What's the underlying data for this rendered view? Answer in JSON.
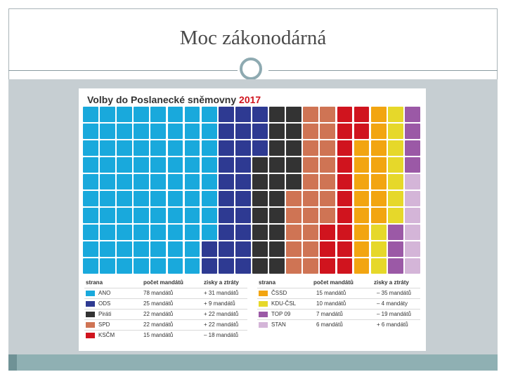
{
  "slide": {
    "title": "Moc zákonodárná"
  },
  "infographic": {
    "title": "Volby do Poslanecké sněmovny",
    "year": "2017"
  },
  "chart_data": {
    "type": "waffle",
    "cells_per_column": 10,
    "total": 200,
    "series": [
      {
        "name": "ANO",
        "value": 78,
        "color": "#19a9dc"
      },
      {
        "name": "ODS",
        "value": 25,
        "color": "#2e3a92"
      },
      {
        "name": "Piráti",
        "value": 22,
        "color": "#333333"
      },
      {
        "name": "SPD",
        "value": 22,
        "color": "#cf7454"
      },
      {
        "name": "KSČM",
        "value": 15,
        "color": "#d0141e"
      },
      {
        "name": "ČSSD",
        "value": 15,
        "color": "#f2a511"
      },
      {
        "name": "KDU-ČSL",
        "value": 10,
        "color": "#e6d82a"
      },
      {
        "name": "TOP 09",
        "value": 7,
        "color": "#9b59a6"
      },
      {
        "name": "STAN",
        "value": 6,
        "color": "#d4b5d8"
      }
    ]
  },
  "legend": {
    "headers": {
      "party": "strana",
      "seats": "počet mandátů",
      "change": "zisky a ztráty"
    },
    "rows": [
      {
        "party": "ANO",
        "seats": "78 mandátů",
        "change": "+ 31 mandátů",
        "color": "#19a9dc"
      },
      {
        "party": "ODS",
        "seats": "25 mandátů",
        "change": "+ 9 mandátů",
        "color": "#2e3a92"
      },
      {
        "party": "Piráti",
        "seats": "22 mandátů",
        "change": "+ 22 mandátů",
        "color": "#333333"
      },
      {
        "party": "SPD",
        "seats": "22 mandátů",
        "change": "+ 22 mandátů",
        "color": "#cf7454"
      },
      {
        "party": "KSČM",
        "seats": "15 mandátů",
        "change": "– 18 mandátů",
        "color": "#d0141e"
      },
      {
        "party": "ČSSD",
        "seats": "15 mandátů",
        "change": "– 35 mandátů",
        "color": "#f2a511"
      },
      {
        "party": "KDU-ČSL",
        "seats": "10 mandátů",
        "change": "– 4 mandáty",
        "color": "#e6d82a"
      },
      {
        "party": "TOP 09",
        "seats": "7 mandátů",
        "change": "– 19 mandátů",
        "color": "#9b59a6"
      },
      {
        "party": "STAN",
        "seats": "6 mandátů",
        "change": "+ 6 mandátů",
        "color": "#d4b5d8"
      }
    ]
  }
}
